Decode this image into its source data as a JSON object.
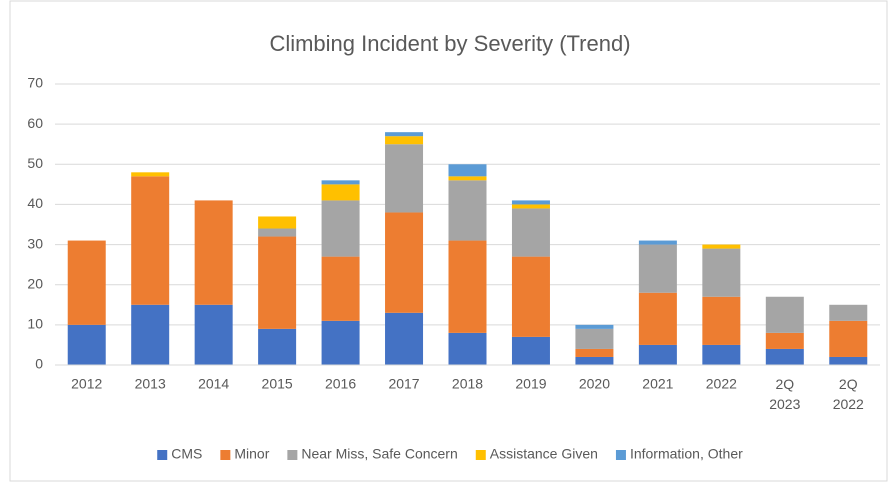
{
  "chart_data": {
    "type": "stacked_bar",
    "title": "Climbing Incident by Severity (Trend)",
    "categories": [
      "2012",
      "2013",
      "2014",
      "2015",
      "2016",
      "2017",
      "2018",
      "2019",
      "2020",
      "2021",
      "2022",
      "2Q 2023",
      "2Q 2022"
    ],
    "series": [
      {
        "name": "CMS",
        "color": "#4472c4",
        "values": [
          10,
          15,
          15,
          9,
          11,
          13,
          8,
          7,
          2,
          5,
          5,
          4,
          2
        ]
      },
      {
        "name": "Minor",
        "color": "#ed7d31",
        "values": [
          21,
          32,
          26,
          23,
          16,
          25,
          23,
          20,
          2,
          13,
          12,
          4,
          9
        ]
      },
      {
        "name": "Near Miss, Safe Concern",
        "color": "#a5a5a5",
        "values": [
          0,
          0,
          0,
          2,
          14,
          17,
          15,
          12,
          5,
          12,
          12,
          9,
          4
        ]
      },
      {
        "name": "Assistance Given",
        "color": "#ffc000",
        "values": [
          0,
          1,
          0,
          3,
          4,
          2,
          1,
          1,
          0,
          0,
          1,
          0,
          0
        ]
      },
      {
        "name": "Information, Other",
        "color": "#5b9bd5",
        "values": [
          0,
          0,
          0,
          0,
          1,
          1,
          3,
          1,
          1,
          1,
          0,
          0,
          0
        ]
      }
    ],
    "ylim": [
      0,
      70
    ],
    "yticks": [
      0,
      10,
      20,
      30,
      40,
      50,
      60,
      70
    ],
    "grid": true,
    "legend": "bottom"
  }
}
